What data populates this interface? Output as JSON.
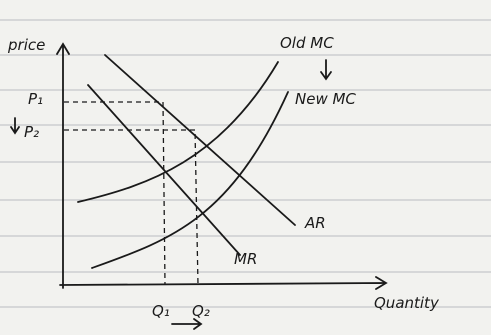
{
  "axes": {
    "y_label": "price",
    "x_label": "Quantity"
  },
  "prices": [
    "P₁",
    "P₂"
  ],
  "quantities": [
    "Q₁",
    "Q₂"
  ],
  "curves": {
    "old_mc": "Old MC",
    "new_mc": "New MC",
    "ar": "AR",
    "mr": "MR"
  }
}
